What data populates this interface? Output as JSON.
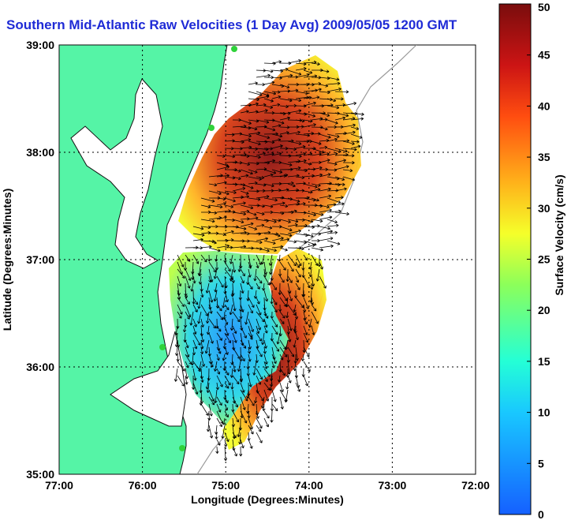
{
  "title": "Southern Mid-Atlantic Raw Velocities (1 Day Avg) 2009/05/05 1200 GMT",
  "chart_data": {
    "type": "heatmap",
    "xlabel": "Longitude (Degrees:Minutes)",
    "ylabel": "Latitude (Degrees:Minutes)",
    "colorbar_label": "Surface Velocity (cm/s)",
    "xlim": [
      -77,
      -72
    ],
    "ylim": [
      35,
      39
    ],
    "xticks": [
      -77,
      -76,
      -75,
      -74,
      -73,
      -72
    ],
    "xtick_labels": [
      "77:00",
      "76:00",
      "75:00",
      "74:00",
      "73:00",
      "72:00"
    ],
    "yticks": [
      35,
      36,
      37,
      38,
      39
    ],
    "ytick_labels": [
      "35:00",
      "36:00",
      "37:00",
      "38:00",
      "39:00"
    ],
    "colorbar_range": [
      0,
      50
    ],
    "colorbar_ticks": [
      0,
      5,
      10,
      15,
      20,
      25,
      30,
      35,
      40,
      45,
      50
    ],
    "grid": true,
    "colors": {
      "land": "#55f4a6",
      "title": "#1f2bd6"
    }
  }
}
